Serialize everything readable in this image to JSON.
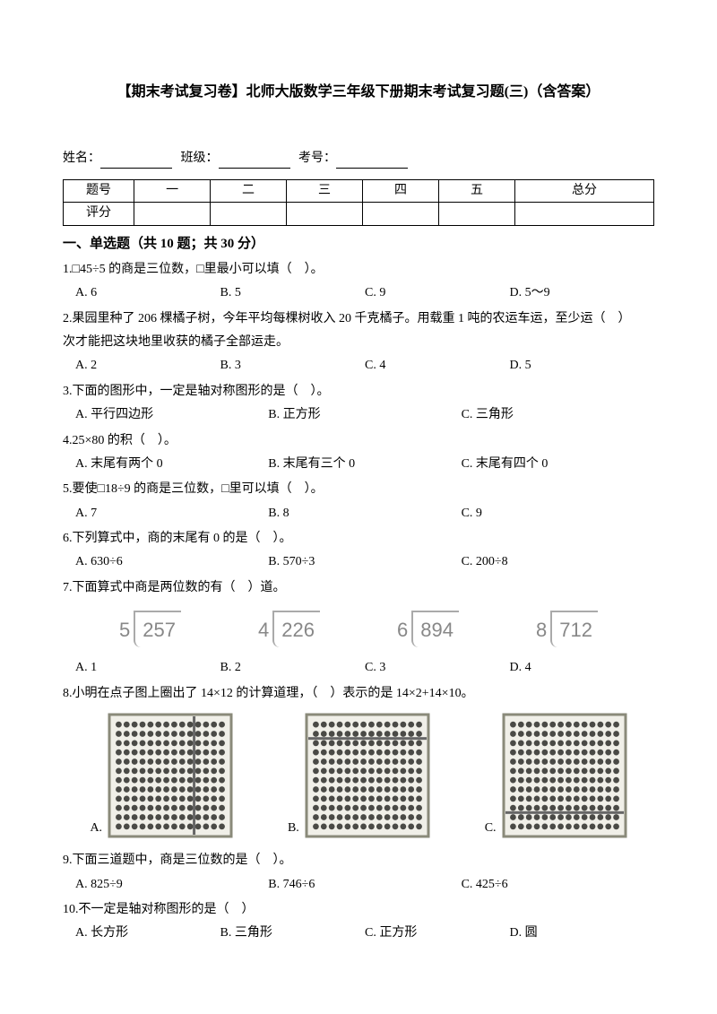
{
  "title": "【期末考试复习卷】北师大版数学三年级下册期末考试复习题(三)（含答案）",
  "info": {
    "name_label": "姓名：",
    "class_label": "班级：",
    "number_label": "考号："
  },
  "score_table": {
    "row1": [
      "题号",
      "一",
      "二",
      "三",
      "四",
      "五",
      "总分"
    ],
    "row2": [
      "评分",
      "",
      "",
      "",
      "",
      "",
      ""
    ]
  },
  "section1_heading": "一、单选题（共 10 题；共 30 分）",
  "questions": {
    "q1": {
      "text": "1.□45÷5 的商是三位数，□里最小可以填（　）。",
      "opts": [
        "A. 6",
        "B. 5",
        "C. 9",
        "D. 5～9"
      ]
    },
    "q2": {
      "line1": "2.果园里种了 206 棵橘子树，今年平均每棵树收入 20 千克橘子。用载重 1 吨的农运车运，至少运（　）",
      "line2": "次才能把这块地里收获的橘子全部运走。",
      "opts": [
        "A. 2",
        "B. 3",
        "C. 4",
        "D. 5"
      ]
    },
    "q3": {
      "text": "3.下面的图形中，一定是轴对称图形的是（　）。",
      "opts": [
        "A. 平行四边形",
        "B. 正方形",
        "C. 三角形"
      ]
    },
    "q4": {
      "text": "4.25×80 的积（　）。",
      "opts": [
        "A. 末尾有两个 0",
        "B. 末尾有三个 0",
        "C. 末尾有四个 0"
      ]
    },
    "q5": {
      "text": "5.要使□18÷9 的商是三位数，□里可以填（　）。",
      "opts": [
        "A. 7",
        "B. 8",
        "C. 9"
      ]
    },
    "q6": {
      "text": "6.下列算式中，商的末尾有 0 的是（　）。",
      "opts": [
        "A. 630÷6",
        "B. 570÷3",
        "C. 200÷8"
      ]
    },
    "q7": {
      "text": "7.下面算式中商是两位数的有（　）道。",
      "divisions": [
        {
          "divisor": "5",
          "dividend": "257"
        },
        {
          "divisor": "4",
          "dividend": "226"
        },
        {
          "divisor": "6",
          "dividend": "894"
        },
        {
          "divisor": "8",
          "dividend": "712"
        }
      ],
      "opts": [
        "A. 1",
        "B. 2",
        "C. 3",
        "D. 4"
      ]
    },
    "q8": {
      "text": "8.小明在点子图上圈出了 14×12 的计算道理，（　）表示的是 14×2+14×10。",
      "abacus": {
        "cols": 14,
        "rows": 12,
        "frame": "#8a8a7a",
        "bead": "#4a4a46",
        "bg": "#f0efe8",
        "bar": "#666",
        "A_split": {
          "type": "v",
          "at": 10
        },
        "B_split": {
          "type": "h",
          "at": 2
        },
        "C_split": {
          "type": "h",
          "at": 10
        }
      },
      "labels": [
        "A.",
        "B.",
        "C."
      ]
    },
    "q9": {
      "text": "9.下面三道题中，商是三位数的是（　）。",
      "opts": [
        "A. 825÷9",
        "B. 746÷6",
        "C. 425÷6"
      ]
    },
    "q10": {
      "text": "10.不一定是轴对称图形的是（　）",
      "opts": [
        "A. 长方形",
        "B. 三角形",
        "C. 正方形",
        "D. 圆"
      ]
    }
  }
}
